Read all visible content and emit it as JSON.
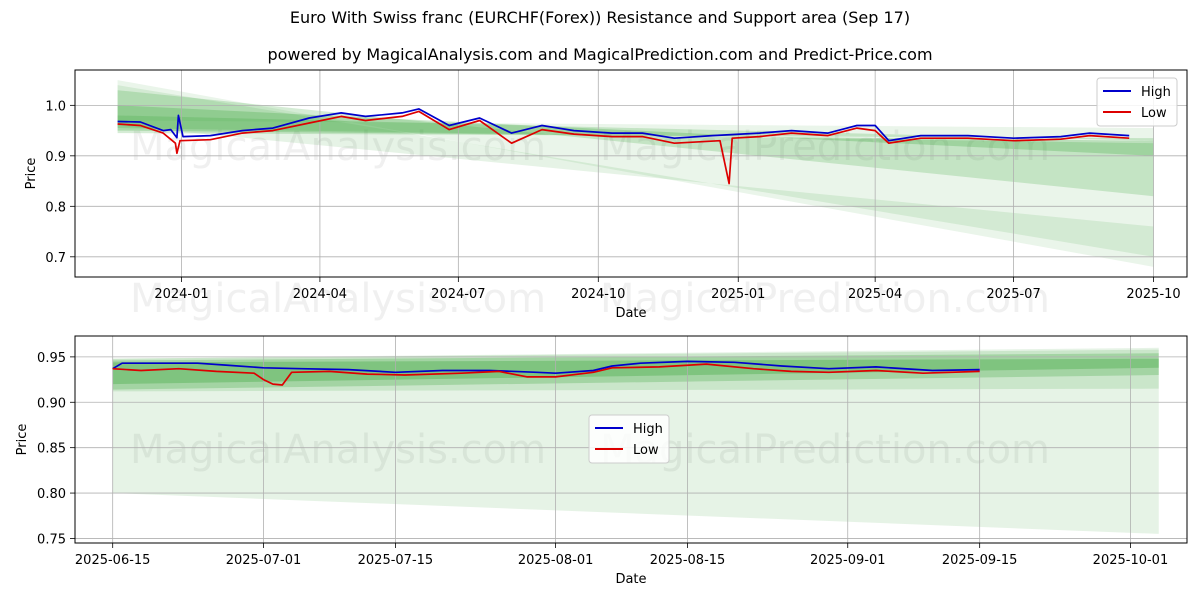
{
  "title": "Euro With Swiss franc (EURCHF(Forex)) Resistance and Support area (Sep 17)",
  "subtitle": "powered by MagicalAnalysis.com and MagicalPrediction.com and Predict-Price.com",
  "watermark": {
    "left": "MagicalAnalysis.com",
    "right": "MagicalPrediction.com"
  },
  "colors": {
    "high": "#0000cc",
    "low": "#dd0000",
    "band": "#2e9e2e",
    "grid": "#b0b0b0"
  },
  "chart_data": [
    {
      "type": "line",
      "name": "top-chart",
      "xlabel": "Date",
      "ylabel": "Price",
      "x_range": [
        "2023-10-23",
        "2025-10-23"
      ],
      "ylim": [
        0.66,
        1.07
      ],
      "x_ticks": [
        {
          "date": "2024-01-01",
          "label": "2024-01"
        },
        {
          "date": "2024-04-01",
          "label": "2024-04"
        },
        {
          "date": "2024-07-01",
          "label": "2024-07"
        },
        {
          "date": "2024-10-01",
          "label": "2024-10"
        },
        {
          "date": "2025-01-01",
          "label": "2025-01"
        },
        {
          "date": "2025-04-01",
          "label": "2025-04"
        },
        {
          "date": "2025-07-01",
          "label": "2025-07"
        },
        {
          "date": "2025-10-01",
          "label": "2025-10"
        }
      ],
      "y_ticks": [
        {
          "value": 0.7,
          "label": "0.7"
        },
        {
          "value": 0.8,
          "label": "0.8"
        },
        {
          "value": 0.9,
          "label": "0.9"
        },
        {
          "value": 1.0,
          "label": "1.0"
        }
      ],
      "legend": {
        "placement": "top-right",
        "entries": [
          "High",
          "Low"
        ]
      },
      "bands": [
        {
          "start": "2023-11-20",
          "end": "2025-10-01",
          "y0": [
            1.05,
            0.68
          ],
          "y1": [
            0.97,
            0.955
          ],
          "opacity": 0.1
        },
        {
          "start": "2023-11-20",
          "end": "2025-10-01",
          "y0": [
            1.04,
            0.7
          ],
          "y1": [
            0.96,
            0.76
          ],
          "opacity": 0.12
        },
        {
          "start": "2023-11-20",
          "end": "2025-10-01",
          "y0": [
            1.03,
            0.82
          ],
          "y1": [
            0.955,
            0.925
          ],
          "opacity": 0.2
        },
        {
          "start": "2023-11-20",
          "end": "2025-10-01",
          "y0": [
            1.0,
            0.9
          ],
          "y1": [
            0.95,
            0.93
          ],
          "opacity": 0.25
        },
        {
          "start": "2023-11-20",
          "end": "2025-10-01",
          "y0": [
            0.98,
            0.93
          ],
          "y1": [
            0.945,
            0.935
          ],
          "opacity": 0.2
        }
      ],
      "series": [
        {
          "name": "High",
          "points": [
            [
              "2023-11-20",
              0.968
            ],
            [
              "2023-12-05",
              0.967
            ],
            [
              "2023-12-20",
              0.95
            ],
            [
              "2023-12-25",
              0.952
            ],
            [
              "2023-12-29",
              0.936
            ],
            [
              "2023-12-30",
              0.98
            ],
            [
              "2024-01-02",
              0.938
            ],
            [
              "2024-01-20",
              0.94
            ],
            [
              "2024-02-10",
              0.95
            ],
            [
              "2024-03-01",
              0.955
            ],
            [
              "2024-03-25",
              0.975
            ],
            [
              "2024-04-15",
              0.985
            ],
            [
              "2024-05-01",
              0.978
            ],
            [
              "2024-05-25",
              0.985
            ],
            [
              "2024-06-05",
              0.993
            ],
            [
              "2024-06-25",
              0.96
            ],
            [
              "2024-07-15",
              0.975
            ],
            [
              "2024-08-05",
              0.945
            ],
            [
              "2024-08-25",
              0.96
            ],
            [
              "2024-09-15",
              0.95
            ],
            [
              "2024-10-10",
              0.945
            ],
            [
              "2024-10-30",
              0.945
            ],
            [
              "2024-11-20",
              0.935
            ],
            [
              "2024-12-15",
              0.94
            ],
            [
              "2025-01-15",
              0.945
            ],
            [
              "2025-02-05",
              0.95
            ],
            [
              "2025-03-01",
              0.945
            ],
            [
              "2025-03-20",
              0.96
            ],
            [
              "2025-04-01",
              0.96
            ],
            [
              "2025-04-10",
              0.93
            ],
            [
              "2025-05-01",
              0.94
            ],
            [
              "2025-06-01",
              0.94
            ],
            [
              "2025-07-01",
              0.935
            ],
            [
              "2025-08-01",
              0.938
            ],
            [
              "2025-08-20",
              0.945
            ],
            [
              "2025-09-15",
              0.94
            ]
          ]
        },
        {
          "name": "Low",
          "points": [
            [
              "2023-11-20",
              0.963
            ],
            [
              "2023-12-05",
              0.96
            ],
            [
              "2023-12-20",
              0.945
            ],
            [
              "2023-12-28",
              0.925
            ],
            [
              "2023-12-29",
              0.905
            ],
            [
              "2023-12-31",
              0.93
            ],
            [
              "2024-01-20",
              0.932
            ],
            [
              "2024-02-10",
              0.945
            ],
            [
              "2024-03-01",
              0.95
            ],
            [
              "2024-03-25",
              0.965
            ],
            [
              "2024-04-15",
              0.978
            ],
            [
              "2024-05-01",
              0.97
            ],
            [
              "2024-05-25",
              0.978
            ],
            [
              "2024-06-05",
              0.988
            ],
            [
              "2024-06-25",
              0.952
            ],
            [
              "2024-07-15",
              0.97
            ],
            [
              "2024-08-05",
              0.925
            ],
            [
              "2024-08-25",
              0.952
            ],
            [
              "2024-09-15",
              0.943
            ],
            [
              "2024-10-10",
              0.938
            ],
            [
              "2024-10-30",
              0.938
            ],
            [
              "2024-11-20",
              0.925
            ],
            [
              "2024-12-20",
              0.93
            ],
            [
              "2024-12-26",
              0.845
            ],
            [
              "2024-12-28",
              0.935
            ],
            [
              "2025-01-15",
              0.938
            ],
            [
              "2025-02-05",
              0.945
            ],
            [
              "2025-03-01",
              0.94
            ],
            [
              "2025-03-20",
              0.955
            ],
            [
              "2025-04-01",
              0.95
            ],
            [
              "2025-04-10",
              0.925
            ],
            [
              "2025-05-01",
              0.935
            ],
            [
              "2025-06-01",
              0.935
            ],
            [
              "2025-07-01",
              0.93
            ],
            [
              "2025-08-01",
              0.933
            ],
            [
              "2025-08-20",
              0.94
            ],
            [
              "2025-09-15",
              0.935
            ]
          ]
        }
      ]
    },
    {
      "type": "line",
      "name": "bottom-chart",
      "xlabel": "Date",
      "ylabel": "Price",
      "x_range": [
        "2025-06-11",
        "2025-10-07"
      ],
      "ylim": [
        0.745,
        0.973
      ],
      "x_ticks": [
        {
          "date": "2025-06-15",
          "label": "2025-06-15"
        },
        {
          "date": "2025-07-01",
          "label": "2025-07-01"
        },
        {
          "date": "2025-07-15",
          "label": "2025-07-15"
        },
        {
          "date": "2025-08-01",
          "label": "2025-08-01"
        },
        {
          "date": "2025-08-15",
          "label": "2025-08-15"
        },
        {
          "date": "2025-09-01",
          "label": "2025-09-01"
        },
        {
          "date": "2025-09-15",
          "label": "2025-09-15"
        },
        {
          "date": "2025-10-01",
          "label": "2025-10-01"
        }
      ],
      "y_ticks": [
        {
          "value": 0.75,
          "label": "0.75"
        },
        {
          "value": 0.8,
          "label": "0.80"
        },
        {
          "value": 0.85,
          "label": "0.85"
        },
        {
          "value": 0.9,
          "label": "0.90"
        },
        {
          "value": 0.95,
          "label": "0.95"
        }
      ],
      "legend": {
        "placement": "center",
        "entries": [
          "High",
          "Low"
        ]
      },
      "bands": [
        {
          "start": "2025-06-15",
          "end": "2025-10-04",
          "y0": [
            0.8,
            0.755
          ],
          "y1": [
            0.948,
            0.96
          ],
          "opacity": 0.12
        },
        {
          "start": "2025-06-15",
          "end": "2025-10-04",
          "y0": [
            0.912,
            0.915
          ],
          "y1": [
            0.948,
            0.958
          ],
          "opacity": 0.15
        },
        {
          "start": "2025-06-15",
          "end": "2025-10-04",
          "y0": [
            0.914,
            0.93
          ],
          "y1": [
            0.946,
            0.954
          ],
          "opacity": 0.25
        },
        {
          "start": "2025-06-15",
          "end": "2025-10-04",
          "y0": [
            0.92,
            0.938
          ],
          "y1": [
            0.944,
            0.948
          ],
          "opacity": 0.3
        }
      ],
      "series": [
        {
          "name": "High",
          "points": [
            [
              "2025-06-15",
              0.937
            ],
            [
              "2025-06-16",
              0.943
            ],
            [
              "2025-06-20",
              0.943
            ],
            [
              "2025-06-24",
              0.943
            ],
            [
              "2025-06-27",
              0.941
            ],
            [
              "2025-07-01",
              0.938
            ],
            [
              "2025-07-05",
              0.937
            ],
            [
              "2025-07-10",
              0.936
            ],
            [
              "2025-07-15",
              0.933
            ],
            [
              "2025-07-20",
              0.935
            ],
            [
              "2025-07-25",
              0.935
            ],
            [
              "2025-07-30",
              0.933
            ],
            [
              "2025-08-01",
              0.932
            ],
            [
              "2025-08-05",
              0.935
            ],
            [
              "2025-08-07",
              0.94
            ],
            [
              "2025-08-10",
              0.943
            ],
            [
              "2025-08-15",
              0.945
            ],
            [
              "2025-08-20",
              0.944
            ],
            [
              "2025-08-25",
              0.94
            ],
            [
              "2025-08-30",
              0.937
            ],
            [
              "2025-09-04",
              0.939
            ],
            [
              "2025-09-10",
              0.935
            ],
            [
              "2025-09-15",
              0.936
            ]
          ]
        },
        {
          "name": "Low",
          "points": [
            [
              "2025-06-15",
              0.937
            ],
            [
              "2025-06-18",
              0.935
            ],
            [
              "2025-06-22",
              0.937
            ],
            [
              "2025-06-26",
              0.934
            ],
            [
              "2025-06-30",
              0.932
            ],
            [
              "2025-07-01",
              0.925
            ],
            [
              "2025-07-02",
              0.92
            ],
            [
              "2025-07-03",
              0.919
            ],
            [
              "2025-07-04",
              0.933
            ],
            [
              "2025-07-08",
              0.934
            ],
            [
              "2025-07-12",
              0.931
            ],
            [
              "2025-07-16",
              0.93
            ],
            [
              "2025-07-22",
              0.932
            ],
            [
              "2025-07-26",
              0.934
            ],
            [
              "2025-07-29",
              0.928
            ],
            [
              "2025-08-01",
              0.928
            ],
            [
              "2025-08-05",
              0.933
            ],
            [
              "2025-08-07",
              0.938
            ],
            [
              "2025-08-12",
              0.939
            ],
            [
              "2025-08-17",
              0.942
            ],
            [
              "2025-08-22",
              0.937
            ],
            [
              "2025-08-26",
              0.934
            ],
            [
              "2025-08-30",
              0.933
            ],
            [
              "2025-09-04",
              0.935
            ],
            [
              "2025-09-09",
              0.932
            ],
            [
              "2025-09-15",
              0.934
            ]
          ]
        }
      ]
    }
  ]
}
